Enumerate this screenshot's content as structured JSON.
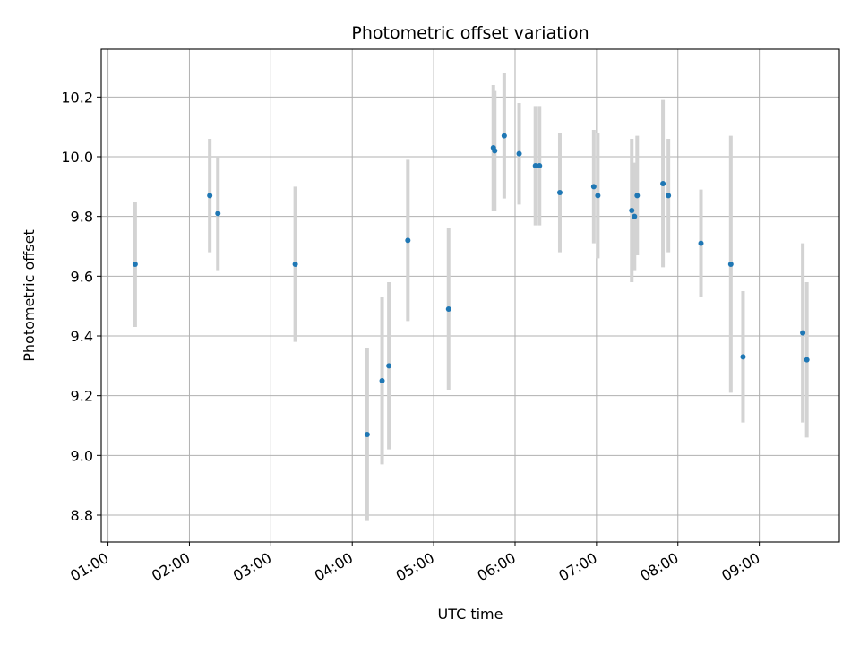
{
  "chart_data": {
    "type": "scatter",
    "title": "Photometric offset variation",
    "xlabel": "UTC time",
    "ylabel": "Photometric offset",
    "x_axis": "time",
    "xlim": [
      "00:55",
      "09:59"
    ],
    "ylim": [
      8.71,
      10.36
    ],
    "x_ticks": [
      "01:00",
      "02:00",
      "03:00",
      "04:00",
      "05:00",
      "06:00",
      "07:00",
      "08:00",
      "09:00"
    ],
    "y_ticks": [
      "8.8",
      "9.0",
      "9.2",
      "9.4",
      "9.6",
      "9.8",
      "10.0",
      "10.2"
    ],
    "grid": true,
    "point_color": "#1f77b4",
    "errorbar_color": "#d3d3d3",
    "series": [
      {
        "points": [
          {
            "t": "01:20",
            "y": 9.64,
            "err": 0.21
          },
          {
            "t": "02:15",
            "y": 9.87,
            "err": 0.19
          },
          {
            "t": "02:21",
            "y": 9.81,
            "err": 0.19
          },
          {
            "t": "03:18",
            "y": 9.64,
            "err": 0.26
          },
          {
            "t": "04:11",
            "y": 9.07,
            "err": 0.29
          },
          {
            "t": "04:22",
            "y": 9.25,
            "err": 0.28
          },
          {
            "t": "04:27",
            "y": 9.3,
            "err": 0.28
          },
          {
            "t": "04:41",
            "y": 9.72,
            "err": 0.27
          },
          {
            "t": "05:11",
            "y": 9.49,
            "err": 0.27
          },
          {
            "t": "05:44",
            "y": 10.03,
            "err": 0.21
          },
          {
            "t": "05:45",
            "y": 10.02,
            "err": 0.2
          },
          {
            "t": "05:52",
            "y": 10.07,
            "err": 0.21
          },
          {
            "t": "06:03",
            "y": 10.01,
            "err": 0.17
          },
          {
            "t": "06:15",
            "y": 9.97,
            "err": 0.2
          },
          {
            "t": "06:18",
            "y": 9.97,
            "err": 0.2
          },
          {
            "t": "06:33",
            "y": 9.88,
            "err": 0.2
          },
          {
            "t": "06:58",
            "y": 9.9,
            "err": 0.19
          },
          {
            "t": "07:01",
            "y": 9.87,
            "err": 0.21
          },
          {
            "t": "07:26",
            "y": 9.82,
            "err": 0.24
          },
          {
            "t": "07:28",
            "y": 9.8,
            "err": 0.18
          },
          {
            "t": "07:30",
            "y": 9.87,
            "err": 0.2
          },
          {
            "t": "07:49",
            "y": 9.91,
            "err": 0.28
          },
          {
            "t": "07:53",
            "y": 9.87,
            "err": 0.19
          },
          {
            "t": "08:17",
            "y": 9.71,
            "err": 0.18
          },
          {
            "t": "08:39",
            "y": 9.64,
            "err": 0.43
          },
          {
            "t": "08:48",
            "y": 9.33,
            "err": 0.22
          },
          {
            "t": "09:32",
            "y": 9.41,
            "err": 0.3
          },
          {
            "t": "09:35",
            "y": 9.32,
            "err": 0.26
          }
        ]
      }
    ]
  }
}
